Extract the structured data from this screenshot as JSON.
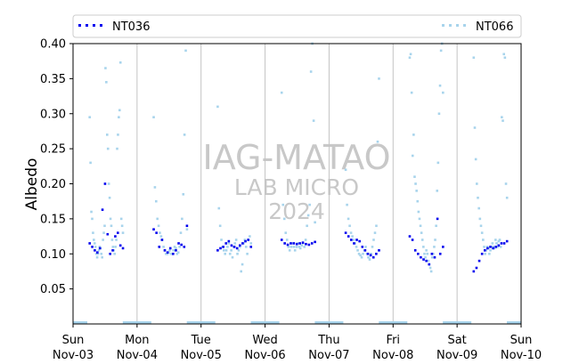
{
  "chart_data": {
    "type": "scatter",
    "ylabel": "Albedo",
    "ylim": [
      0.0,
      0.4
    ],
    "y_ticks": [
      "0.05",
      "0.10",
      "0.15",
      "0.20",
      "0.25",
      "0.30",
      "0.35",
      "0.40"
    ],
    "x_ticks": [
      {
        "day": "Sun",
        "date": "Nov-03"
      },
      {
        "day": "Mon",
        "date": "Nov-04"
      },
      {
        "day": "Tue",
        "date": "Nov-05"
      },
      {
        "day": "Wed",
        "date": "Nov-06"
      },
      {
        "day": "Thu",
        "date": "Nov-07"
      },
      {
        "day": "Fri",
        "date": "Nov-08"
      },
      {
        "day": "Sat",
        "date": "Nov-09"
      },
      {
        "day": "Sun",
        "date": "Nov-10"
      }
    ],
    "grid": "vertical",
    "legend_placement": "top",
    "watermark": {
      "line1": "IAG-MATAO",
      "line2": "LAB MICRO",
      "line3": "2024"
    },
    "series": [
      {
        "name": "NT036",
        "color": "#0000ee",
        "days": [
          {
            "day": "Nov-03",
            "values": [
              0.115,
              0.11,
              0.105,
              0.102,
              0.108,
              0.163,
              0.2,
              0.128,
              0.1,
              0.105,
              0.125,
              0.13,
              0.112,
              0.108
            ]
          },
          {
            "day": "Nov-04",
            "values": [
              0.135,
              0.13,
              0.11,
              0.12,
              0.105,
              0.102,
              0.108,
              0.1,
              0.105,
              0.115,
              0.113,
              0.11,
              0.14
            ]
          },
          {
            "day": "Nov-05",
            "values": [
              0.105,
              0.108,
              0.11,
              0.115,
              0.118,
              0.112,
              0.11,
              0.108,
              0.112,
              0.115,
              0.118,
              0.12,
              0.11
            ]
          },
          {
            "day": "Nov-06",
            "values": [
              0.12,
              0.115,
              0.113,
              0.115,
              0.115,
              0.114,
              0.115,
              0.116,
              0.114,
              0.113,
              0.115,
              0.117
            ]
          },
          {
            "day": "Nov-07",
            "values": [
              0.13,
              0.125,
              0.12,
              0.115,
              0.12,
              0.118,
              0.11,
              0.105,
              0.1,
              0.098,
              0.095,
              0.1,
              0.105
            ]
          },
          {
            "day": "Nov-08",
            "values": [
              0.125,
              0.12,
              0.105,
              0.1,
              0.095,
              0.092,
              0.09,
              0.085,
              0.1,
              0.095,
              0.15,
              0.1,
              0.11
            ]
          },
          {
            "day": "Nov-09",
            "values": [
              0.075,
              0.08,
              0.09,
              0.1,
              0.105,
              0.108,
              0.11,
              0.108,
              0.11,
              0.112,
              0.115,
              0.115,
              0.118
            ]
          }
        ]
      },
      {
        "name": "NT066",
        "color": "#a8d4ec",
        "days": [
          {
            "day": "Nov-03",
            "values": [
              0.295,
              0.23,
              0.16,
              0.15,
              0.13,
              0.12,
              0.115,
              0.11,
              0.1,
              0.095,
              0.1,
              0.105,
              0.11,
              0.108,
              0.1,
              0.095,
              0.12,
              0.13,
              0.14,
              0.365,
              0.345,
              0.27,
              0.25,
              0.2,
              0.18,
              0.15,
              0.14,
              0.12,
              0.11,
              0.105,
              0.1,
              0.11,
              0.12,
              0.25,
              0.27,
              0.295,
              0.305,
              0.373,
              0.15,
              0.14,
              0.13
            ]
          },
          {
            "day": "Nov-04",
            "values": [
              0.295,
              0.195,
              0.175,
              0.15,
              0.14,
              0.13,
              0.125,
              0.12,
              0.11,
              0.105,
              0.1,
              0.1,
              0.102,
              0.105,
              0.1,
              0.1,
              0.105,
              0.11,
              0.108,
              0.1,
              0.102,
              0.11,
              0.13,
              0.15,
              0.185,
              0.27,
              0.39,
              0.135
            ]
          },
          {
            "day": "Nov-05",
            "values": [
              0.31,
              0.165,
              0.14,
              0.12,
              0.11,
              0.105,
              0.1,
              0.105,
              0.11,
              0.115,
              0.1,
              0.105,
              0.095,
              0.11,
              0.115,
              0.12,
              0.1,
              0.105,
              0.11,
              0.075,
              0.085,
              0.115,
              0.12,
              0.11,
              0.1,
              0.12,
              0.125,
              0.115
            ]
          },
          {
            "day": "Nov-06",
            "values": [
              0.33,
              0.17,
              0.15,
              0.13,
              0.12,
              0.11,
              0.105,
              0.11,
              0.115,
              0.11,
              0.105,
              0.11,
              0.115,
              0.11,
              0.108,
              0.112,
              0.115,
              0.11,
              0.12,
              0.14,
              0.155,
              0.17,
              0.36,
              0.4,
              0.29,
              0.145
            ]
          },
          {
            "day": "Nov-07",
            "values": [
              0.22,
              0.17,
              0.15,
              0.14,
              0.13,
              0.125,
              0.12,
              0.115,
              0.11,
              0.105,
              0.1,
              0.098,
              0.095,
              0.1,
              0.105,
              0.11,
              0.1,
              0.095,
              0.092,
              0.1,
              0.11,
              0.12,
              0.13,
              0.14,
              0.26,
              0.35
            ]
          },
          {
            "day": "Nov-08",
            "values": [
              0.38,
              0.385,
              0.33,
              0.24,
              0.27,
              0.21,
              0.2,
              0.19,
              0.175,
              0.16,
              0.15,
              0.14,
              0.13,
              0.12,
              0.11,
              0.1,
              0.095,
              0.105,
              0.1,
              0.09,
              0.085,
              0.08,
              0.075,
              0.095,
              0.1,
              0.11,
              0.12,
              0.14,
              0.19,
              0.23,
              0.3,
              0.34,
              0.39,
              0.4,
              0.33
            ]
          },
          {
            "day": "Nov-09",
            "values": [
              0.38,
              0.28,
              0.235,
              0.2,
              0.18,
              0.165,
              0.15,
              0.14,
              0.13,
              0.12,
              0.11,
              0.1,
              0.105,
              0.11,
              0.108,
              0.1,
              0.105,
              0.11,
              0.115,
              0.11,
              0.108,
              0.12,
              0.115,
              0.11,
              0.118,
              0.12,
              0.11,
              0.295,
              0.29,
              0.385,
              0.38,
              0.2,
              0.18
            ]
          }
        ]
      }
    ]
  }
}
